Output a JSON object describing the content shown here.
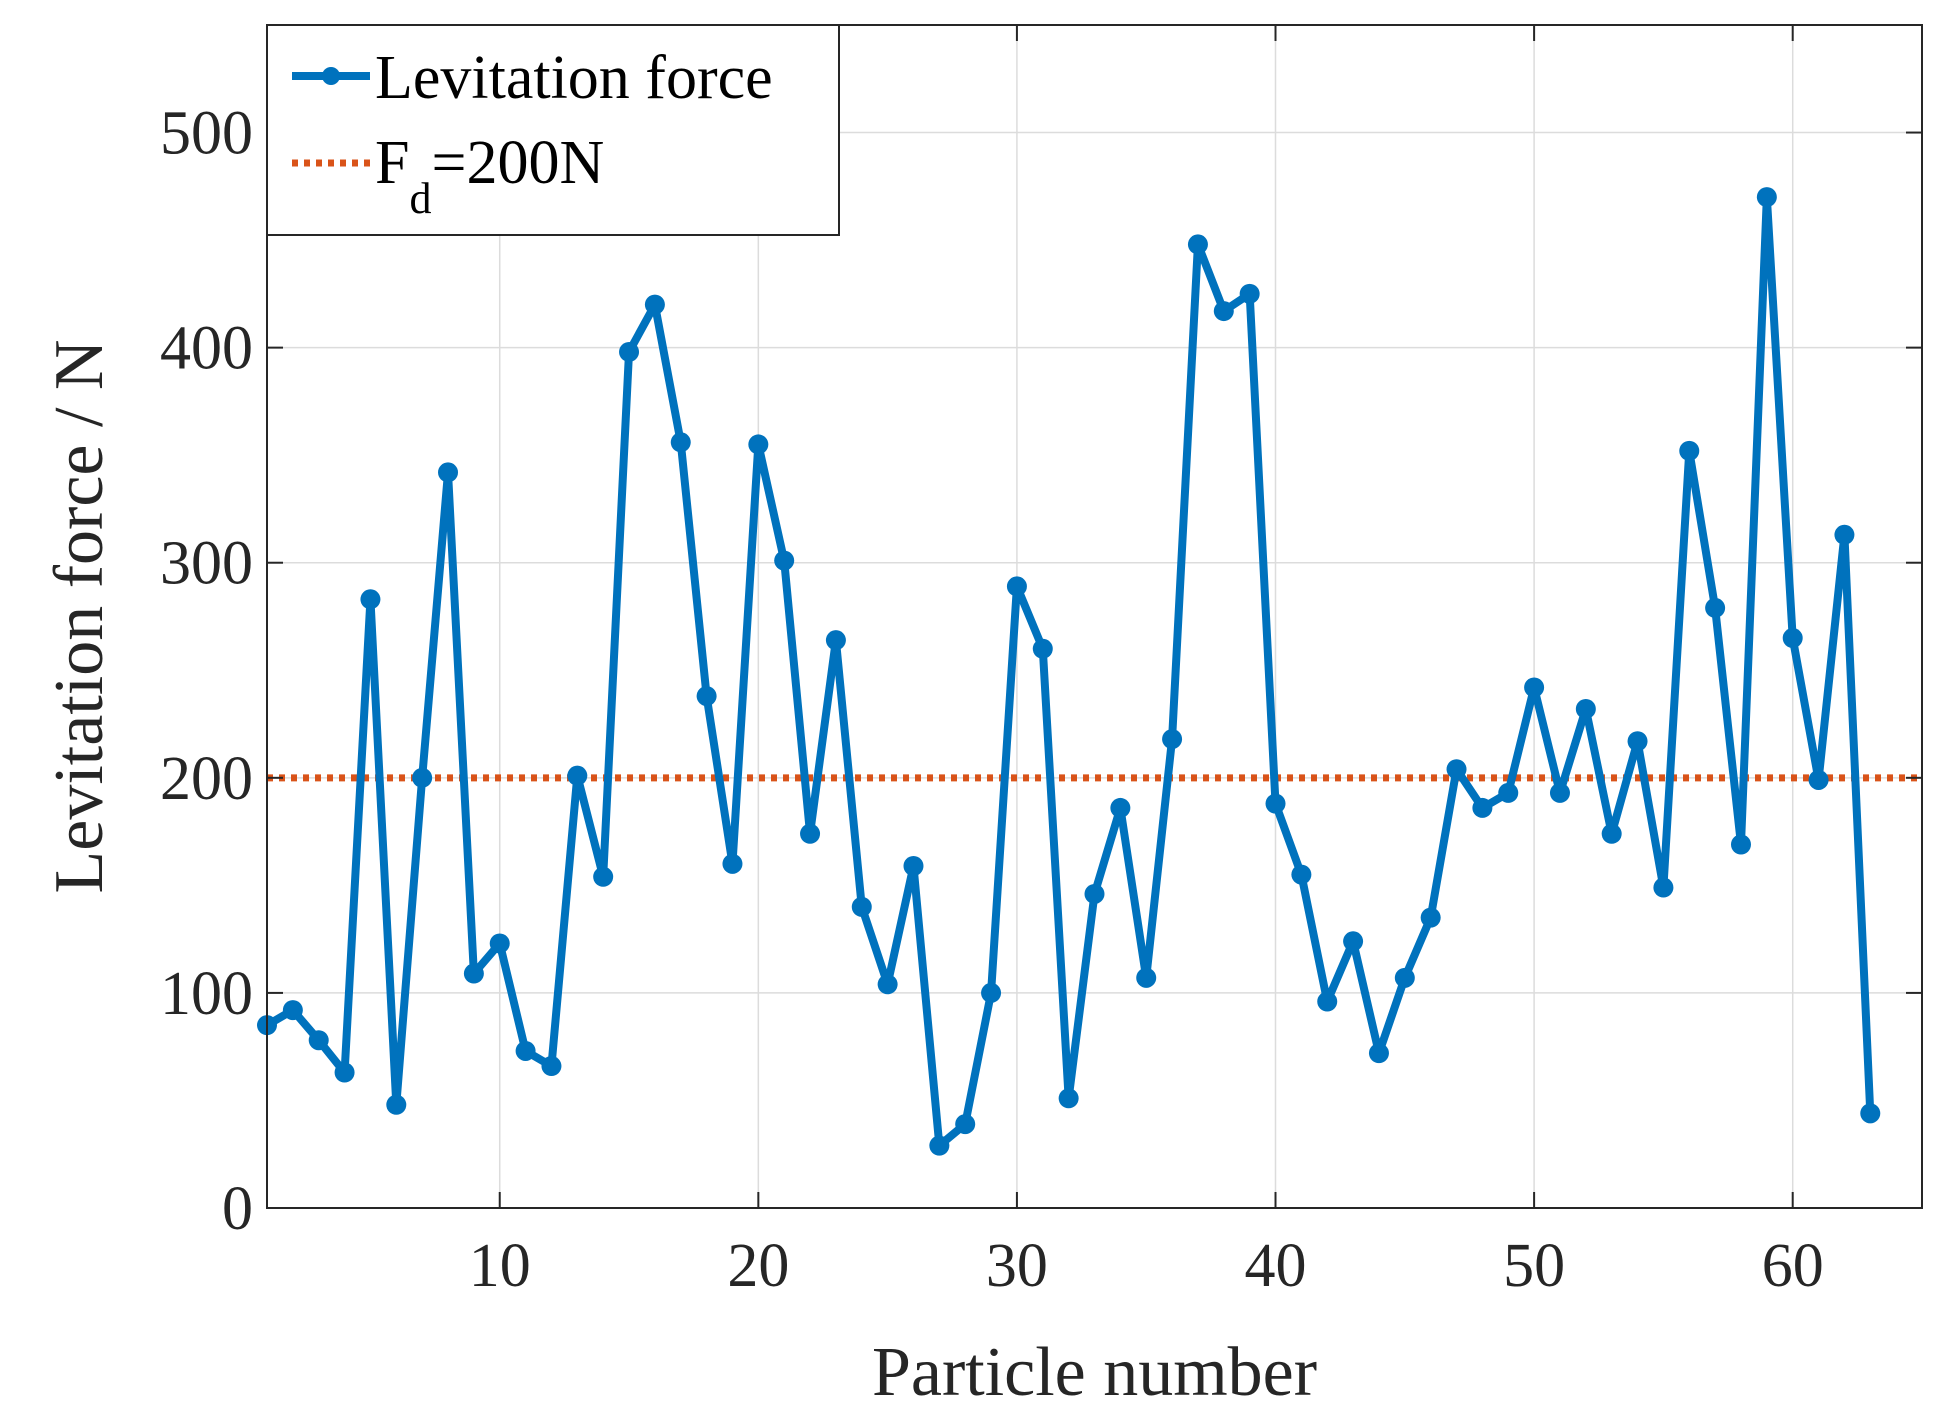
{
  "chart_data": {
    "type": "line",
    "title": "",
    "xlabel": "Particle number",
    "ylabel": "Levitation force / N",
    "xlim": [
      1,
      65
    ],
    "ylim": [
      0,
      550
    ],
    "xticks": [
      10,
      20,
      30,
      40,
      50,
      60
    ],
    "yticks": [
      0,
      100,
      200,
      300,
      400,
      500
    ],
    "grid": true,
    "legend_position": "top-left",
    "colors": {
      "series": "#0072BD",
      "reference": "#D95319",
      "grid": "#dcdcdc",
      "axis": "#262626"
    },
    "series": [
      {
        "name": "Levitation force",
        "x": [
          1,
          2,
          3,
          4,
          5,
          6,
          7,
          8,
          9,
          10,
          11,
          12,
          13,
          14,
          15,
          16,
          17,
          18,
          19,
          20,
          21,
          22,
          23,
          24,
          25,
          26,
          27,
          28,
          29,
          30,
          31,
          32,
          33,
          34,
          35,
          36,
          37,
          38,
          39,
          40,
          41,
          42,
          43,
          44,
          45,
          46,
          47,
          48,
          49,
          50,
          51,
          52,
          53,
          54,
          55,
          56,
          57,
          58,
          59,
          60,
          61,
          62,
          63
        ],
        "values": [
          85,
          92,
          78,
          63,
          283,
          48,
          200,
          342,
          109,
          123,
          73,
          66,
          201,
          154,
          398,
          420,
          356,
          238,
          160,
          355,
          301,
          174,
          264,
          140,
          104,
          159,
          29,
          39,
          100,
          289,
          260,
          51,
          146,
          186,
          107,
          218,
          448,
          417,
          425,
          188,
          155,
          96,
          124,
          72,
          107,
          135,
          204,
          186,
          193,
          242,
          193,
          232,
          174,
          217,
          149,
          352,
          279,
          169,
          470,
          265,
          199,
          313,
          44
        ]
      }
    ],
    "reference_line": {
      "name": "F_d=200N",
      "legend_main": "F",
      "legend_sub": "d",
      "legend_rest": "=200N",
      "y": 200,
      "style": "dotted"
    }
  }
}
